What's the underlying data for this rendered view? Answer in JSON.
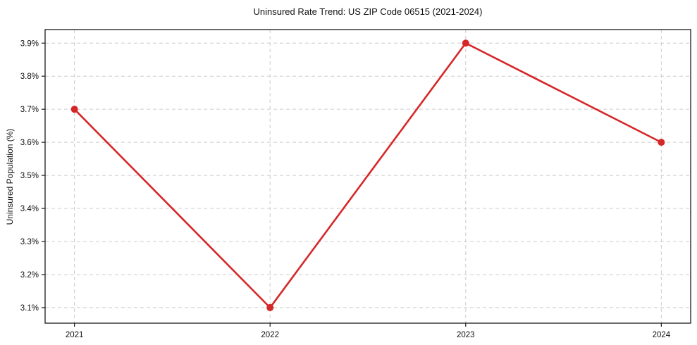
{
  "chart_data": {
    "type": "line",
    "title": "Uninsured Rate Trend: US ZIP Code 06515 (2021-2024)",
    "xlabel": "",
    "ylabel": "Uninsured Population (%)",
    "x": [
      2021,
      2022,
      2023,
      2024
    ],
    "values": [
      3.7,
      3.1,
      3.9,
      3.6
    ],
    "x_tick_labels": [
      "2021",
      "2022",
      "2023",
      "2024"
    ],
    "y_tick_values": [
      3.1,
      3.2,
      3.3,
      3.4,
      3.5,
      3.6,
      3.7,
      3.8,
      3.9
    ],
    "y_tick_labels": [
      "3.1%",
      "3.2%",
      "3.3%",
      "3.4%",
      "3.5%",
      "3.6%",
      "3.7%",
      "3.8%",
      "3.9%"
    ],
    "xlim": [
      2020.85,
      2024.15
    ],
    "ylim": [
      3.053,
      3.941
    ],
    "grid": true,
    "grid_style": "dashed",
    "legend": false,
    "marker": "circle",
    "colors": {
      "line": "#d62728",
      "grid": "#cccccc",
      "axis": "#1a1a1a",
      "text": "#111111",
      "background": "#ffffff"
    }
  }
}
